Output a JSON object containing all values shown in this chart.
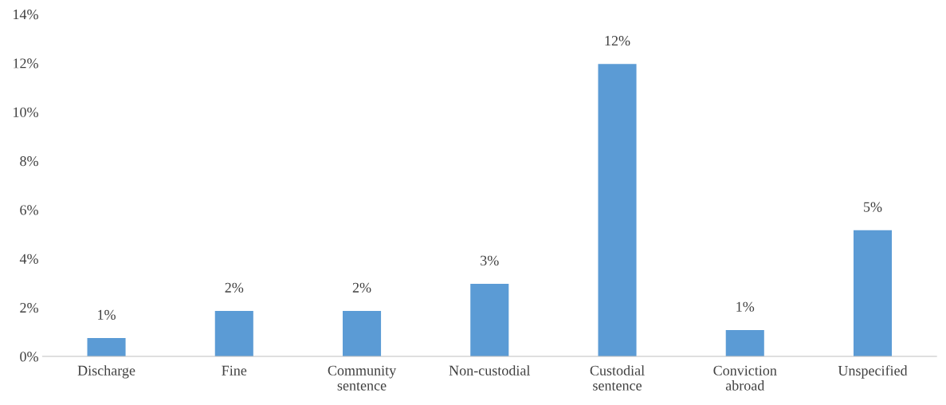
{
  "chart_data": {
    "type": "bar",
    "categories": [
      "Discharge",
      "Fine",
      "Community\nsentence",
      "Non-custodial",
      "Custodial\nsentence",
      "Conviction\nabroad",
      "Unspecified"
    ],
    "values": [
      0.75,
      1.86,
      1.86,
      2.97,
      11.96,
      1.08,
      5.16
    ],
    "value_labels": [
      "1%",
      "2%",
      "2%",
      "3%",
      "12%",
      "1%",
      "5%"
    ],
    "color": "#5b9bd5",
    "ylim": [
      0,
      14
    ],
    "yticks": [
      {
        "value": 0,
        "label": "0%"
      },
      {
        "value": 2,
        "label": "2%"
      },
      {
        "value": 4,
        "label": "4%"
      },
      {
        "value": 6,
        "label": "6%"
      },
      {
        "value": 8,
        "label": "8%"
      },
      {
        "value": 10,
        "label": "10%"
      },
      {
        "value": 12,
        "label": "12%"
      },
      {
        "value": 14,
        "label": "14%"
      }
    ],
    "grid": false,
    "legend": false
  }
}
